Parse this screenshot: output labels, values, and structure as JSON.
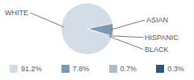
{
  "chart_data": {
    "type": "pie",
    "categories": [
      "WHITE",
      "ASIAN",
      "HISPANIC",
      "BLACK"
    ],
    "values": [
      91.2,
      7.8,
      0.7,
      0.3
    ],
    "value_labels": [
      "91.2%",
      "7.8%",
      "0.7%",
      "0.3%"
    ],
    "colors": [
      "#d3dde7",
      "#7d98b3",
      "#aabdd0",
      "#30577a"
    ],
    "legend": "bottom"
  }
}
